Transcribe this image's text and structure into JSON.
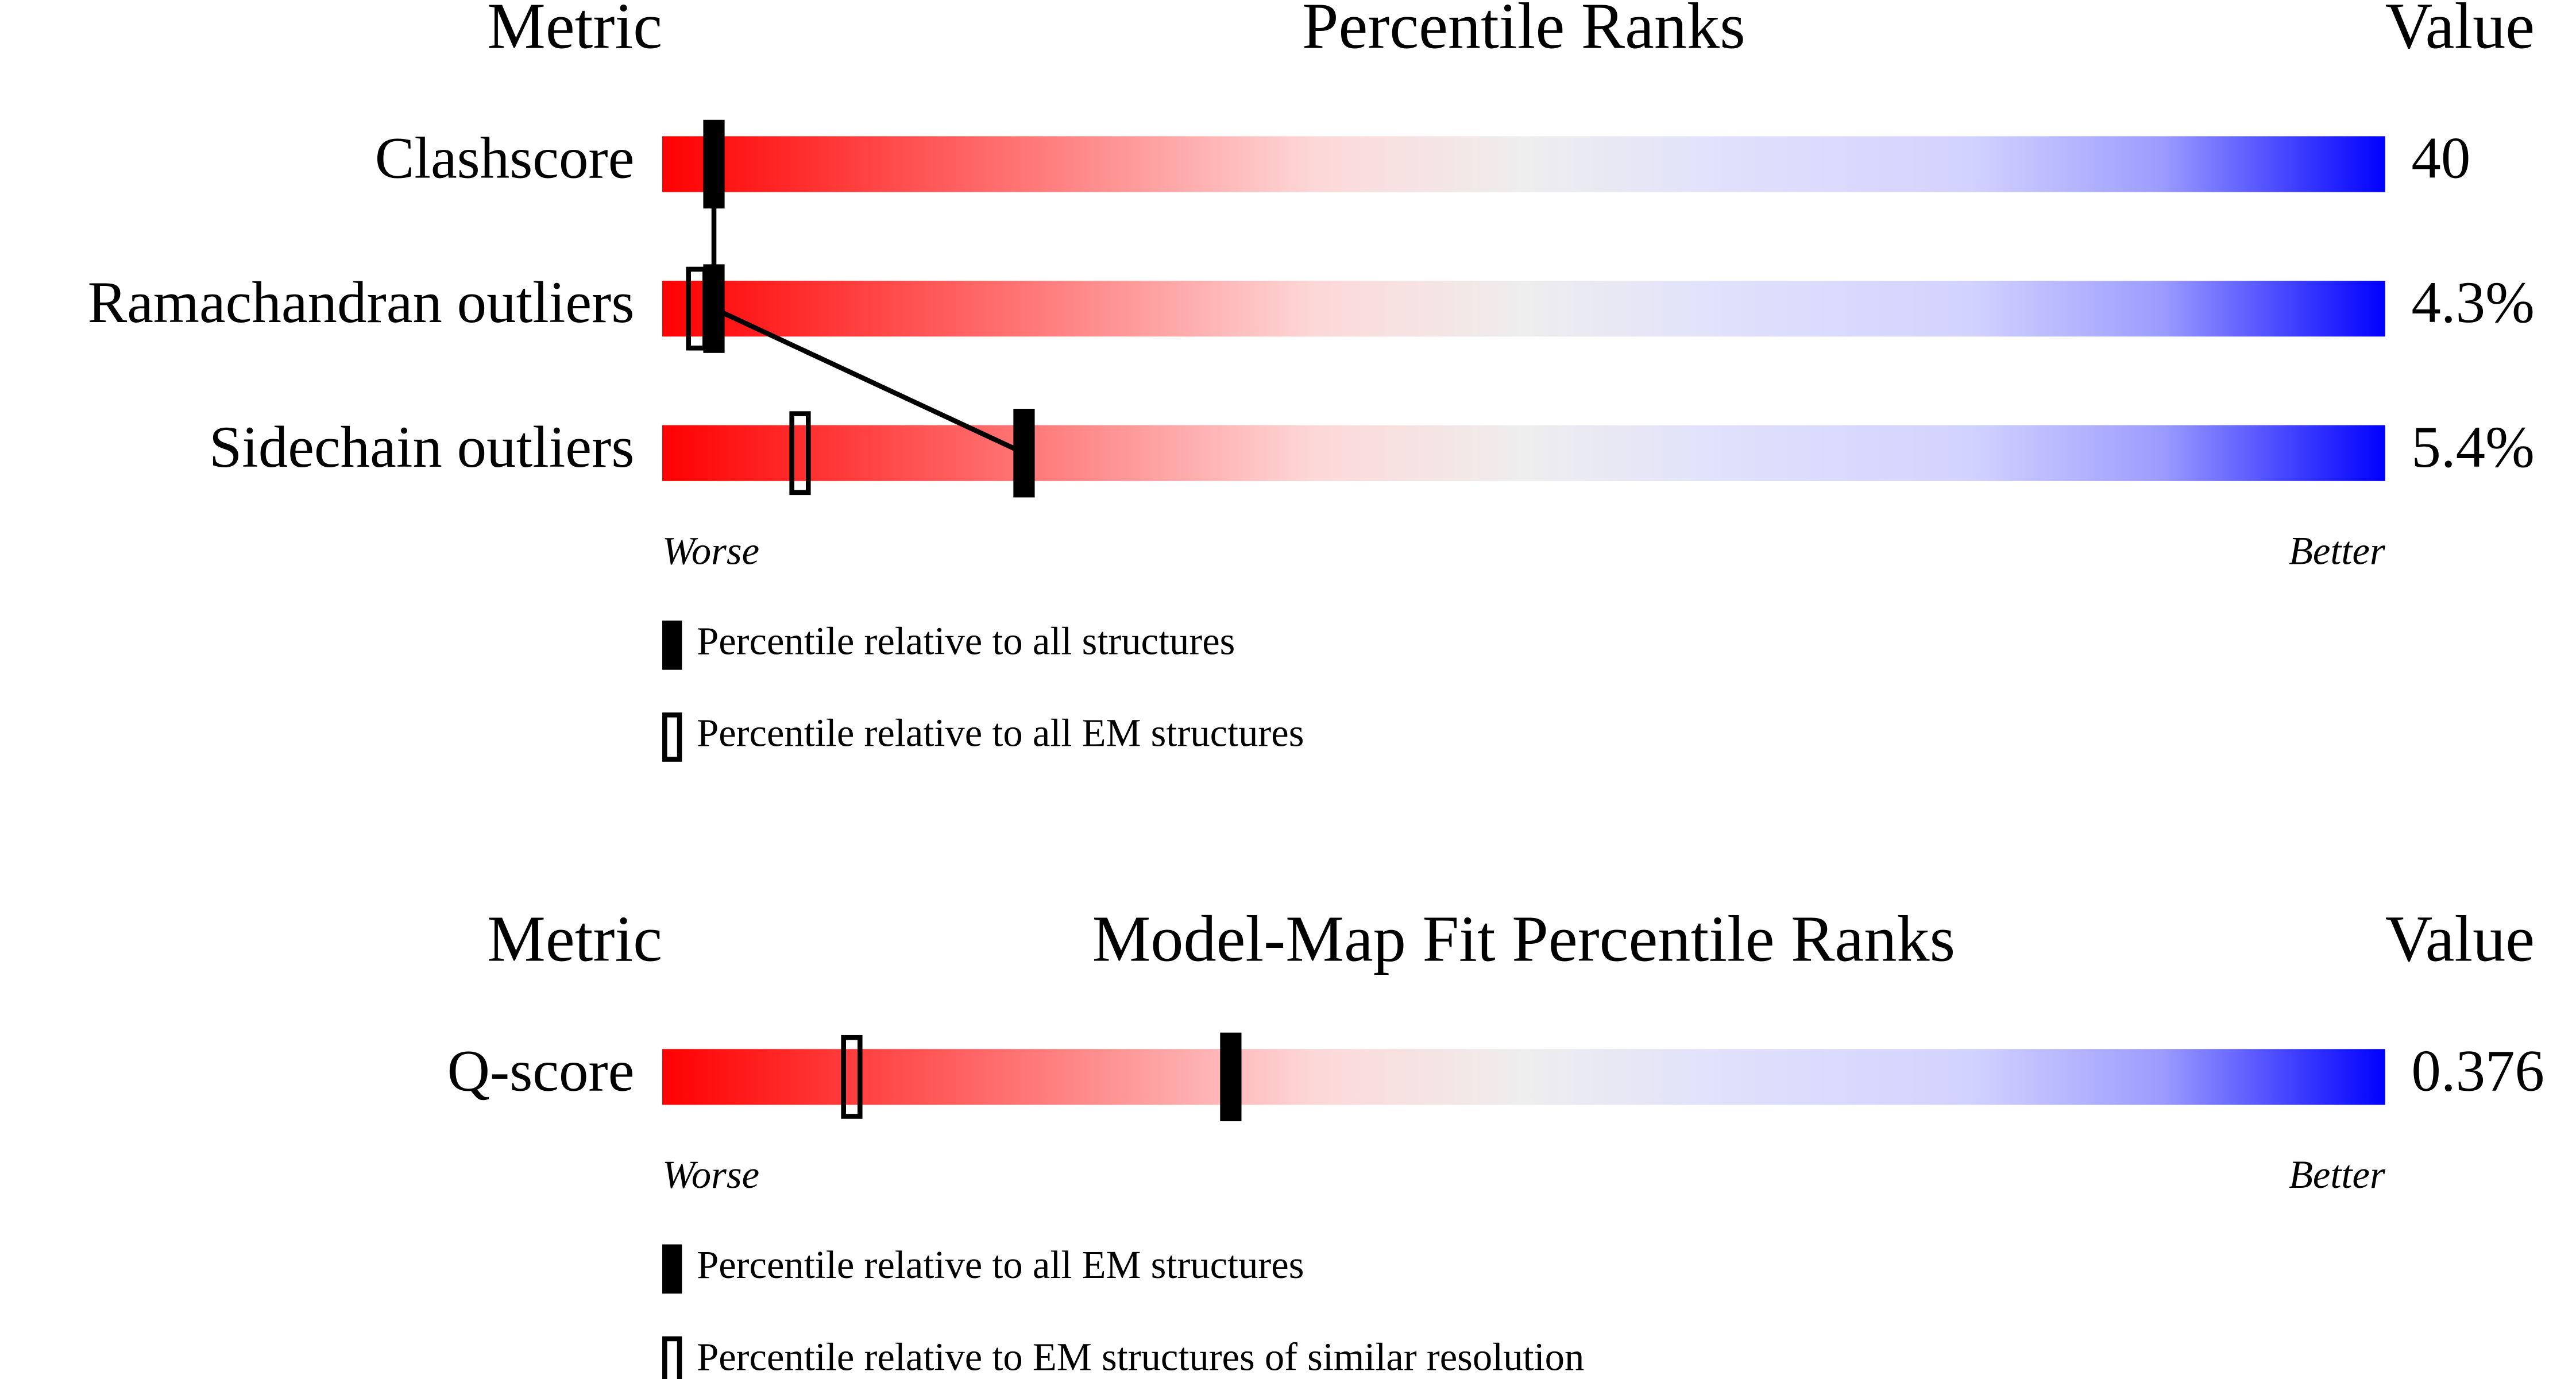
{
  "chart_data": [
    {
      "type": "percentile",
      "metric_header": "Metric",
      "title": "Percentile Ranks",
      "value_header": "Value",
      "categories": [
        "Clashscore",
        "Ramachandran outliers",
        "Sidechain outliers"
      ],
      "metric_values": [
        "40",
        "4.3%",
        "5.4%"
      ],
      "series": [
        {
          "name": "Percentile relative to all structures",
          "style": "filled",
          "color": "#000000",
          "values": [
            3,
            3,
            21
          ]
        },
        {
          "name": "Percentile relative to all EM structures",
          "style": "open",
          "color": "#000000",
          "values": [
            null,
            2,
            8
          ]
        }
      ],
      "xlim": [
        0,
        100
      ],
      "low_label": "Worse",
      "high_label": "Better",
      "connect": true
    },
    {
      "type": "percentile",
      "metric_header": "Metric",
      "title": "Model-Map Fit Percentile Ranks",
      "value_header": "Value",
      "categories": [
        "Q-score"
      ],
      "metric_values": [
        "0.376"
      ],
      "series": [
        {
          "name": "Percentile relative to all EM structures",
          "style": "filled",
          "color": "#000000",
          "values": [
            33
          ]
        },
        {
          "name": "Percentile relative to EM structures of similar resolution",
          "style": "open",
          "color": "#000000",
          "values": [
            11
          ]
        }
      ],
      "xlim": [
        0,
        100
      ],
      "low_label": "Worse",
      "high_label": "Better",
      "connect": true
    }
  ]
}
